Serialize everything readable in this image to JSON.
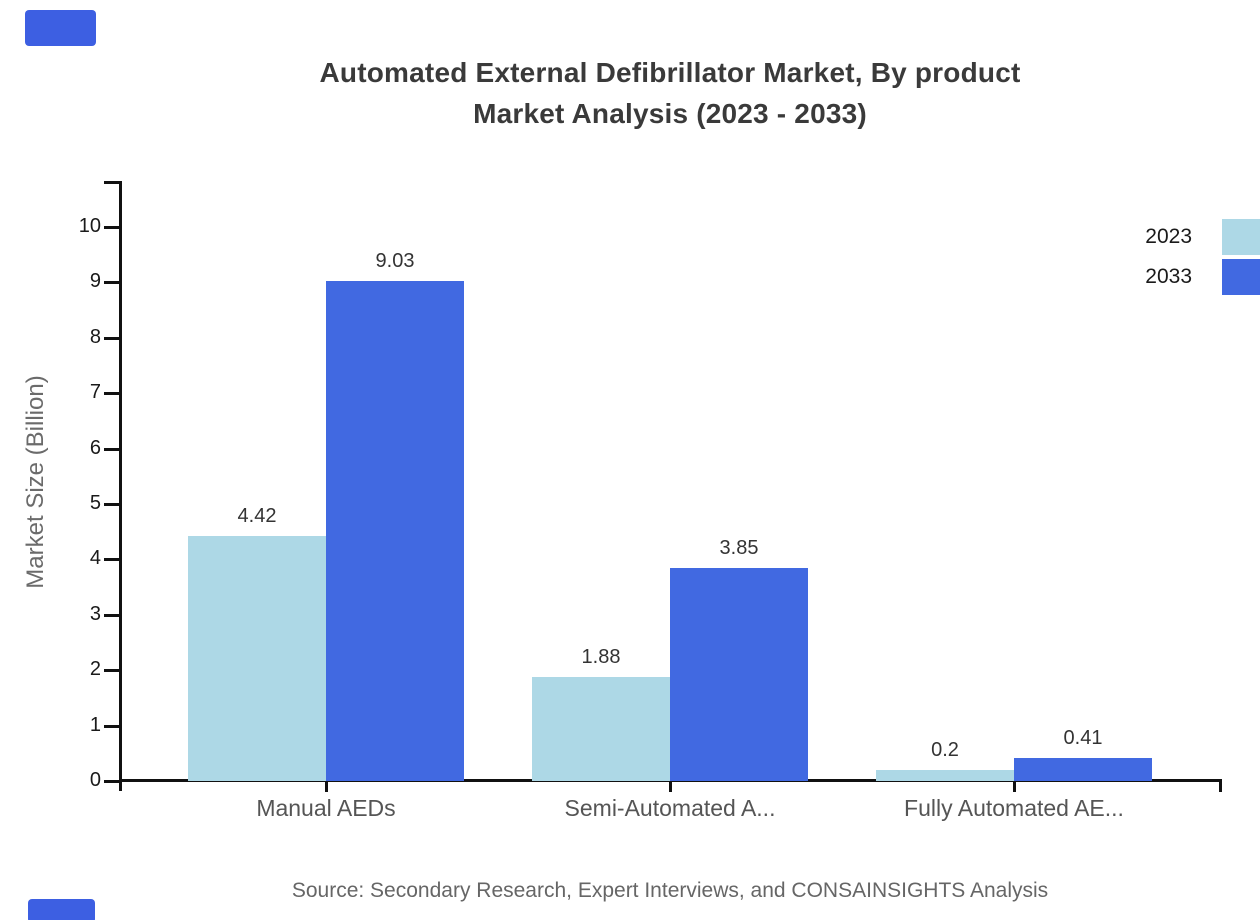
{
  "title": {
    "line1": "Automated External Defibrillator Market, By product",
    "line2": "Market Analysis (2023 - 2033)"
  },
  "source_text": "Source: Secondary Research, Expert Interviews, and CONSAINSIGHTS Analysis",
  "colors": {
    "series_2023": "#ADD8E6",
    "series_2033": "#4169E1",
    "brand_logo": "#3D5FE2",
    "axis": "#111111",
    "title_text": "#3a3a3a",
    "category_text": "#555555",
    "value_text": "#333333",
    "muted_text": "#666666"
  },
  "icons": {
    "brand_logo_top": "brand-logo",
    "brand_logo_bottom": "brand-logo"
  },
  "chart_data": {
    "type": "bar",
    "title": "Automated External Defibrillator Market, By product Market Analysis (2023 - 2033)",
    "categories": [
      "Manual AEDs",
      "Semi-Automated A...",
      "Fully Automated AE..."
    ],
    "series": [
      {
        "name": "2023",
        "color": "#ADD8E6",
        "values": [
          4.42,
          1.88,
          0.2
        ]
      },
      {
        "name": "2033",
        "color": "#4169E1",
        "values": [
          9.03,
          3.85,
          0.41
        ]
      }
    ],
    "value_labels": [
      [
        "4.42",
        "1.88",
        "0.2"
      ],
      [
        "9.03",
        "3.85",
        "0.41"
      ]
    ],
    "xlabel": "",
    "ylabel": "Market Size (Billion)",
    "ylim": [
      0,
      10
    ],
    "yticks": [
      0,
      1,
      2,
      3,
      4,
      5,
      6,
      7,
      8,
      9,
      10
    ],
    "grid": false,
    "legend_position": "top-right",
    "bar_value_labels_shown": true
  }
}
